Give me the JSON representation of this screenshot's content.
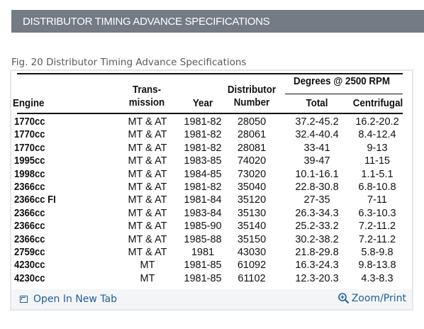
{
  "header": {
    "title": "DISTRIBUTOR TIMING ADVANCE SPECIFICATIONS"
  },
  "figure": {
    "caption": "Fig. 20 Distributor Timing Advance Specifications",
    "table": {
      "headers": {
        "engine": "Engine",
        "transmission_line1": "Trans-",
        "transmission_line2": "mission",
        "year": "Year",
        "distributor_line1": "Distributor",
        "distributor_line2": "Number",
        "degrees_group": "Degrees @ 2500 RPM",
        "total": "Total",
        "centrifugal": "Centrifugal"
      },
      "rows": [
        {
          "engine": "1770cc",
          "transmission": "MT & AT",
          "year": "1981-82",
          "distributor": "28050",
          "total": "37.2-45.2",
          "centrifugal": "16.2-20.2"
        },
        {
          "engine": "1770cc",
          "transmission": "MT & AT",
          "year": "1981-82",
          "distributor": "28061",
          "total": "32.4-40.4",
          "centrifugal": "8.4-12.4"
        },
        {
          "engine": "1770cc",
          "transmission": "MT & AT",
          "year": "1981-82",
          "distributor": "28081",
          "total": "33-41",
          "centrifugal": "9-13"
        },
        {
          "engine": "1995cc",
          "transmission": "MT & AT",
          "year": "1983-85",
          "distributor": "74020",
          "total": "39-47",
          "centrifugal": "11-15"
        },
        {
          "engine": "1998cc",
          "transmission": "MT & AT",
          "year": "1984-85",
          "distributor": "73020",
          "total": "10.1-16.1",
          "centrifugal": "1.1-5.1"
        },
        {
          "engine": "2366cc",
          "transmission": "MT & AT",
          "year": "1981-82",
          "distributor": "35040",
          "total": "22.8-30.8",
          "centrifugal": "6.8-10.8"
        },
        {
          "engine": "2366cc FI",
          "transmission": "MT & AT",
          "year": "1981-84",
          "distributor": "35120",
          "total": "27-35",
          "centrifugal": "7-11"
        },
        {
          "engine": "2366cc",
          "transmission": "MT & AT",
          "year": "1983-84",
          "distributor": "35130",
          "total": "26.3-34.3",
          "centrifugal": "6.3-10.3"
        },
        {
          "engine": "2366cc",
          "transmission": "MT & AT",
          "year": "1985-90",
          "distributor": "35140",
          "total": "25.2-33.2",
          "centrifugal": "7.2-11.2"
        },
        {
          "engine": "2366cc",
          "transmission": "MT & AT",
          "year": "1985-88",
          "distributor": "35150",
          "total": "30.2-38.2",
          "centrifugal": "7.2-11.2"
        },
        {
          "engine": "2759cc",
          "transmission": "MT & AT",
          "year": "1981",
          "distributor": "43030",
          "total": "21.8-29.8",
          "centrifugal": "5.8-9.8"
        },
        {
          "engine": "4230cc",
          "transmission": "MT",
          "year": "1981-85",
          "distributor": "61092",
          "total": "16.3-24.3",
          "centrifugal": "9.8-13.8"
        },
        {
          "engine": "4230cc",
          "transmission": "MT",
          "year": "1981-85",
          "distributor": "61102",
          "total": "12.3-20.3",
          "centrifugal": "4.3-8.3"
        }
      ]
    }
  },
  "footer": {
    "open_label": "Open In New Tab",
    "zoom_label": "Zoom/Print",
    "open_icon": "external-link-icon",
    "zoom_icon": "magnifier-icon"
  },
  "colors": {
    "header_bg": "#737b84",
    "link": "#1f5e99",
    "footer_bg": "#f4f5f7"
  }
}
